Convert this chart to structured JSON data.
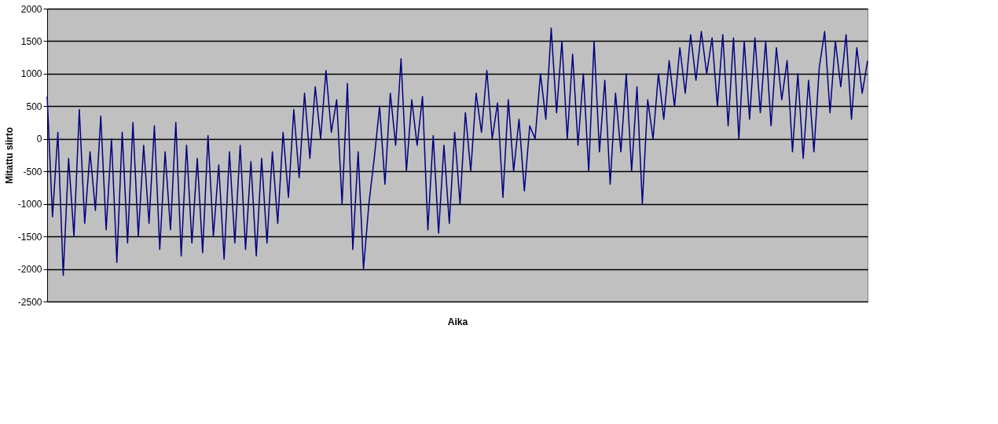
{
  "chart_data": {
    "type": "line",
    "xlabel": "Aika",
    "ylabel": "Mitattu siirto",
    "categories": [
      null,
      null,
      null,
      null,
      null,
      null,
      null,
      null,
      null,
      null,
      null,
      null,
      null,
      null,
      null,
      null,
      null,
      null,
      null,
      null,
      null,
      null,
      null,
      null,
      null,
      null,
      null,
      null,
      null,
      null,
      null,
      null,
      null,
      null,
      null,
      null,
      null,
      null,
      null,
      null,
      null,
      null,
      null,
      null,
      null,
      null,
      null,
      null,
      null,
      null,
      null,
      null,
      null,
      null,
      null,
      null,
      null,
      null,
      null,
      null,
      null,
      null,
      null,
      null,
      null,
      null,
      null,
      null,
      null,
      null,
      null,
      null,
      null,
      null,
      null,
      null,
      null,
      null,
      null,
      null,
      null,
      null,
      null,
      null,
      null,
      null,
      null,
      null,
      null,
      null,
      null,
      null,
      null,
      null,
      null,
      null,
      null,
      null,
      null,
      null,
      null,
      null,
      null,
      null,
      null,
      null,
      null,
      null,
      null,
      null,
      null,
      null,
      null,
      null,
      null,
      null,
      null,
      null,
      null,
      null,
      null,
      null,
      null,
      null,
      null,
      null,
      null,
      null,
      null,
      null,
      null,
      null,
      null,
      null,
      null,
      null,
      null,
      null,
      null,
      null,
      null,
      null,
      null,
      null,
      null,
      null,
      null,
      null,
      null,
      null,
      null,
      null,
      null,
      null
    ],
    "series": [
      {
        "color": "#000080",
        "values": [
          650,
          -1200,
          100,
          -2100,
          -300,
          -1500,
          450,
          -1300,
          -200,
          -1100,
          350,
          -1400,
          0,
          -1900,
          100,
          -1600,
          250,
          -1500,
          -100,
          -1300,
          200,
          -1700,
          -200,
          -1400,
          250,
          -1800,
          -100,
          -1600,
          -300,
          -1750,
          50,
          -1500,
          -400,
          -1850,
          -200,
          -1600,
          -100,
          -1700,
          -350,
          -1800,
          -300,
          -1600,
          -200,
          -1300,
          100,
          -900,
          450,
          -600,
          700,
          -300,
          800,
          0,
          1050,
          100,
          600,
          -1000,
          850,
          -1700,
          -200,
          -2000,
          -1000,
          -300,
          500,
          -700,
          700,
          -100,
          1230,
          -500,
          600,
          -100,
          650,
          -1400,
          50,
          -1450,
          -100,
          -1300,
          100,
          -1000,
          400,
          -500,
          700,
          100,
          1050,
          0,
          550,
          -900,
          600,
          -500,
          300,
          -800,
          200,
          0,
          1000,
          300,
          1700,
          400,
          1500,
          0,
          1300,
          -100,
          1000,
          -500,
          1500,
          -200,
          900,
          -700,
          700,
          -200,
          1000,
          -500,
          800,
          -1000,
          600,
          0,
          1000,
          300,
          1200,
          500,
          1400,
          700,
          1600,
          900,
          1650,
          1000,
          1550,
          500,
          1600,
          200,
          1550,
          0,
          1500,
          300,
          1550,
          400,
          1500,
          200,
          1400,
          600,
          1200,
          -200,
          1000,
          -300,
          900,
          -200,
          1100,
          1650,
          400,
          1500,
          800,
          1600,
          300,
          1400,
          700,
          1200
        ]
      }
    ],
    "ylim": [
      -2500,
      2000
    ],
    "yticks": [
      -2500,
      -2000,
      -1500,
      -1000,
      -500,
      0,
      500,
      1000,
      1500,
      2000
    ],
    "grid": "y",
    "line_style": "solid",
    "marker": "none",
    "legend": false
  }
}
